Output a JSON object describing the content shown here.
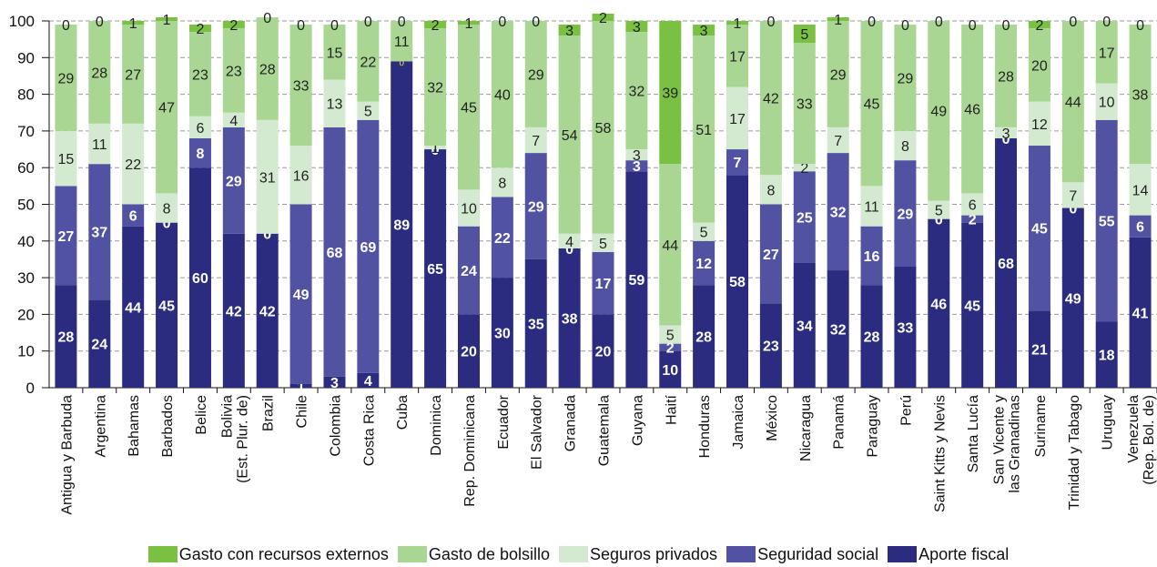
{
  "chart_data": {
    "type": "bar",
    "stacked": true,
    "ylim": [
      0,
      100
    ],
    "yticks": [
      0,
      10,
      20,
      30,
      40,
      50,
      60,
      70,
      80,
      90,
      100
    ],
    "grid": "horizontal dashed",
    "legend_position": "bottom",
    "categories": [
      [
        "Antigua y Barbuda"
      ],
      [
        "Argentina"
      ],
      [
        "Bahamas"
      ],
      [
        "Barbados"
      ],
      [
        "Belice"
      ],
      [
        "Bolivia",
        "(Est. Plur. de)"
      ],
      [
        "Brazil"
      ],
      [
        "Chile"
      ],
      [
        "Colombia"
      ],
      [
        "Costa Rica"
      ],
      [
        "Cuba"
      ],
      [
        "Dominica"
      ],
      [
        "Rep. Dominicana"
      ],
      [
        "Ecuador"
      ],
      [
        "El Salvador"
      ],
      [
        "Granada"
      ],
      [
        "Guatemala"
      ],
      [
        "Guyana"
      ],
      [
        "Haití"
      ],
      [
        "Honduras"
      ],
      [
        "Jamaica"
      ],
      [
        "México"
      ],
      [
        "Nicaragua"
      ],
      [
        "Panamá"
      ],
      [
        "Paraguay"
      ],
      [
        "Perú"
      ],
      [
        "Saint Kitts y Nevis"
      ],
      [
        "Santa Lucía"
      ],
      [
        "San Vicente y",
        "las Granadinas"
      ],
      [
        "Suriname"
      ],
      [
        "Trinidad y Tabago"
      ],
      [
        "Uruguay"
      ],
      [
        "Venezuela",
        "(Rep. Bol. de)"
      ]
    ],
    "series": [
      {
        "name": "Aporte fiscal",
        "color": "#2b2c7f",
        "label_color": "#ffffff",
        "bold": true,
        "values": [
          28,
          24,
          44,
          45,
          60,
          42,
          42,
          1,
          3,
          4,
          89,
          65,
          20,
          30,
          35,
          38,
          20,
          59,
          10,
          28,
          58,
          23,
          34,
          32,
          28,
          33,
          46,
          45,
          68,
          21,
          49,
          18,
          41
        ]
      },
      {
        "name": "Seguridad social",
        "color": "#5252a2",
        "label_color": "#ffffff",
        "bold": true,
        "values": [
          27,
          37,
          6,
          0,
          8,
          29,
          0,
          49,
          68,
          69,
          0,
          0,
          24,
          22,
          29,
          0,
          17,
          3,
          2,
          12,
          7,
          27,
          25,
          32,
          16,
          29,
          0,
          2,
          0,
          45,
          0,
          55,
          6
        ]
      },
      {
        "name": "Seguros privados",
        "color": "#d3ead0",
        "label_color": "#222222",
        "bold": false,
        "values": [
          15,
          11,
          22,
          8,
          6,
          4,
          31,
          16,
          13,
          5,
          0,
          1,
          10,
          8,
          7,
          4,
          5,
          3,
          5,
          5,
          17,
          8,
          2,
          7,
          11,
          8,
          5,
          6,
          3,
          12,
          7,
          10,
          14
        ]
      },
      {
        "name": "Gasto de bolsillo",
        "color": "#aad693",
        "label_color": "#222222",
        "bold": false,
        "values": [
          29,
          28,
          27,
          47,
          23,
          23,
          28,
          33,
          15,
          22,
          11,
          32,
          45,
          40,
          29,
          54,
          58,
          32,
          44,
          51,
          17,
          42,
          33,
          29,
          45,
          29,
          49,
          46,
          28,
          20,
          44,
          17,
          38
        ]
      },
      {
        "name": "Gasto con recursos externos",
        "color": "#7ac143",
        "label_color": "#222222",
        "bold": false,
        "values": [
          0,
          0,
          1,
          1,
          2,
          2,
          0,
          0,
          0,
          0,
          0,
          2,
          1,
          0,
          0,
          3,
          2,
          3,
          39,
          3,
          1,
          0,
          5,
          1,
          0,
          0,
          0,
          0,
          0,
          2,
          0,
          0,
          0
        ]
      }
    ],
    "legend_order": [
      "Gasto con recursos externos",
      "Gasto de bolsillo",
      "Seguros privados",
      "Seguridad social",
      "Aporte fiscal"
    ]
  },
  "legend": [
    {
      "label": "Gasto con recursos externos",
      "color": "#7ac143"
    },
    {
      "label": "Gasto de bolsillo",
      "color": "#aad693"
    },
    {
      "label": "Seguros privados",
      "color": "#d3ead0"
    },
    {
      "label": "Seguridad social",
      "color": "#5252a2"
    },
    {
      "label": "Aporte fiscal",
      "color": "#2b2c7f"
    }
  ]
}
